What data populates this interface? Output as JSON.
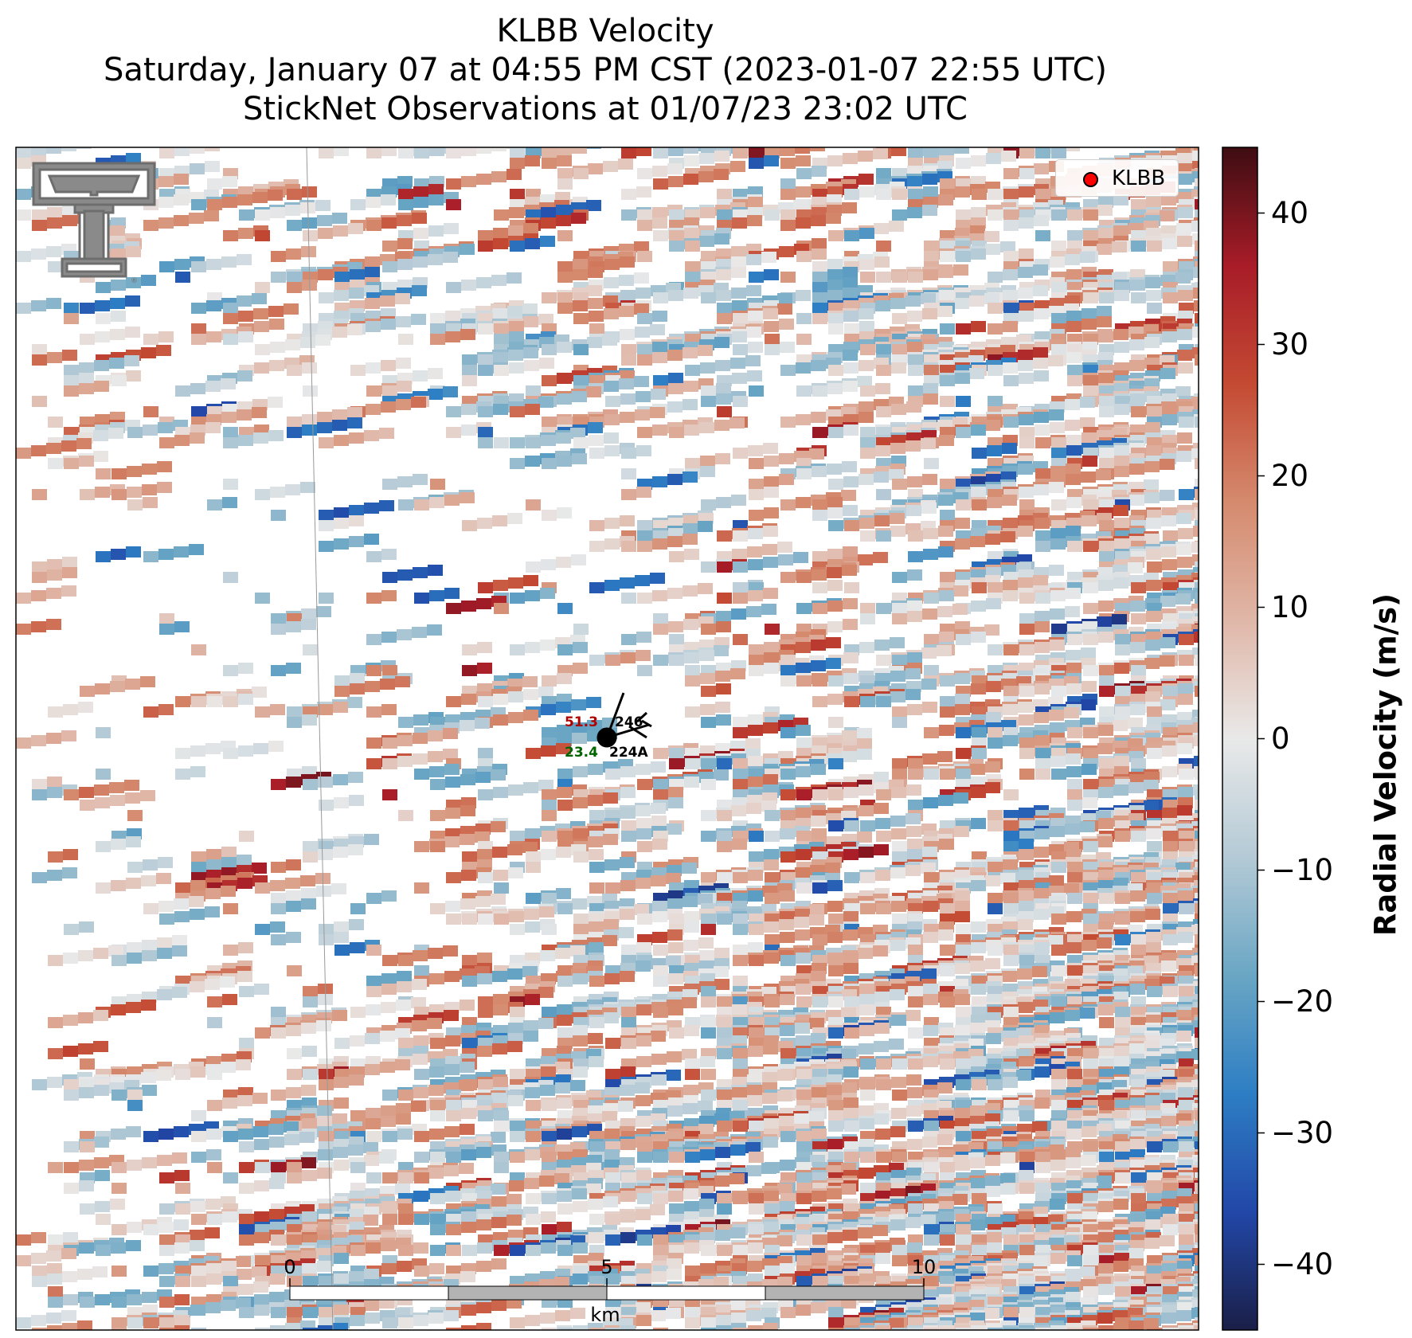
{
  "title": {
    "line1": "KLBB Velocity",
    "line2": "Saturday, January 07 at 04:55 PM CST (2023-01-07 22:55 UTC)",
    "line3": "StickNet Observations at 01/07/23 23:02 UTC"
  },
  "colorbar": {
    "label": "Radial Velocity (m/s)",
    "min": -45,
    "max": 45,
    "ticks": [
      "40",
      "30",
      "20",
      "10",
      "0",
      "−10",
      "−20",
      "−30",
      "−40"
    ],
    "tick_values": [
      40,
      30,
      20,
      10,
      0,
      -10,
      -20,
      -30,
      -40
    ],
    "colormap": [
      "#1a1f47",
      "#2247a8",
      "#2d7ec4",
      "#6aa6c4",
      "#b4cad6",
      "#e9e9e9",
      "#e0b7a8",
      "#d58a6e",
      "#c44a33",
      "#a81c28",
      "#3d0d12"
    ]
  },
  "legend": {
    "label": "KLBB",
    "marker_color": "#ff0000"
  },
  "scale_bar": {
    "labels": [
      "0",
      "5",
      "10"
    ],
    "unit": "km"
  },
  "station": {
    "temperature": "51.3",
    "dewpoint": "23.4",
    "id_top": "246",
    "id_bottom": "224A",
    "temperature_color": "#b00000",
    "dewpoint_color": "#006400"
  },
  "logo": {
    "name": "texas-tech-double-t-logo",
    "color": "#6d6d6d"
  }
}
